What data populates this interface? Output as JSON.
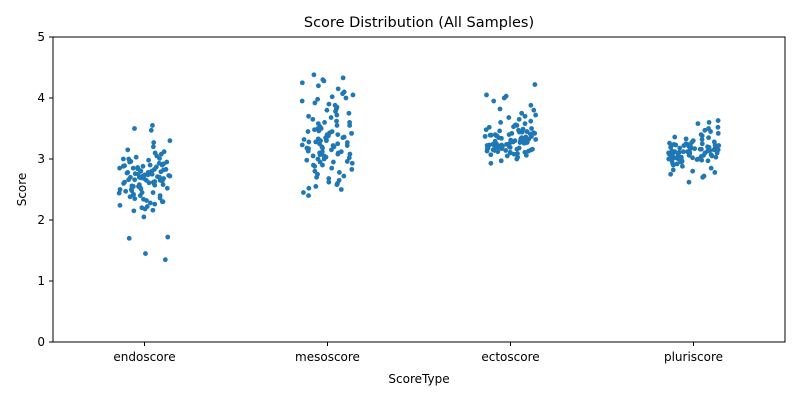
{
  "chart_data": {
    "type": "scatter",
    "subtype": "strip",
    "title": "Score Distribution (All Samples)",
    "xlabel": "ScoreType",
    "ylabel": "Score",
    "categories": [
      "endoscore",
      "mesoscore",
      "ectoscore",
      "pluriscore"
    ],
    "yticks": [
      0,
      1,
      2,
      3,
      4,
      5
    ],
    "ylim": [
      0,
      5
    ],
    "grid": false,
    "point_color": "#1f77b4",
    "series": [
      {
        "category": "endoscore",
        "summary": {
          "min": 1.35,
          "max": 3.55,
          "center": 2.7
        },
        "values": [
          3.55,
          3.5,
          3.47,
          3.3,
          3.27,
          3.2,
          3.15,
          3.12,
          3.1,
          3.08,
          3.05,
          3.03,
          3.01,
          3.0,
          2.98,
          2.96,
          2.95,
          2.93,
          2.92,
          2.9,
          2.89,
          2.88,
          2.87,
          2.86,
          2.85,
          2.84,
          2.83,
          2.82,
          2.81,
          2.8,
          2.79,
          2.78,
          2.77,
          2.76,
          2.75,
          2.74,
          2.73,
          2.72,
          2.71,
          2.7,
          2.69,
          2.68,
          2.67,
          2.66,
          2.65,
          2.64,
          2.63,
          2.62,
          2.61,
          2.6,
          2.59,
          2.58,
          2.57,
          2.56,
          2.55,
          2.54,
          2.53,
          2.52,
          2.51,
          2.5,
          2.48,
          2.47,
          2.45,
          2.44,
          2.42,
          2.41,
          2.4,
          2.38,
          2.36,
          2.34,
          2.32,
          2.3,
          2.28,
          2.26,
          2.24,
          2.22,
          2.2,
          2.18,
          2.16,
          2.15,
          2.05,
          1.72,
          1.7,
          1.45,
          1.35,
          2.9,
          2.85,
          2.8,
          2.75,
          2.7,
          2.65,
          2.6,
          2.55,
          2.7,
          2.72,
          2.68,
          2.66,
          2.74,
          2.62,
          2.58,
          2.78,
          2.83,
          2.88,
          2.95,
          3.0,
          2.5,
          2.45,
          2.4,
          2.35,
          2.3
        ]
      },
      {
        "category": "mesoscore",
        "summary": {
          "min": 2.4,
          "max": 4.38,
          "center": 3.2
        },
        "values": [
          4.38,
          4.33,
          4.3,
          4.28,
          4.25,
          4.2,
          4.15,
          4.1,
          4.07,
          4.05,
          4.02,
          4.0,
          3.98,
          3.95,
          3.92,
          3.9,
          3.88,
          3.85,
          3.82,
          3.8,
          3.78,
          3.75,
          3.72,
          3.7,
          3.68,
          3.65,
          3.62,
          3.6,
          3.58,
          3.55,
          3.53,
          3.5,
          3.48,
          3.46,
          3.45,
          3.43,
          3.42,
          3.4,
          3.38,
          3.36,
          3.35,
          3.33,
          3.32,
          3.3,
          3.28,
          3.27,
          3.25,
          3.23,
          3.22,
          3.2,
          3.18,
          3.17,
          3.15,
          3.13,
          3.12,
          3.1,
          3.08,
          3.07,
          3.05,
          3.03,
          3.02,
          3.0,
          2.98,
          2.96,
          2.95,
          2.93,
          2.9,
          2.88,
          2.85,
          2.83,
          2.8,
          2.78,
          2.75,
          2.72,
          2.7,
          2.68,
          2.65,
          2.62,
          2.6,
          2.58,
          2.55,
          2.52,
          2.5,
          2.45,
          2.4,
          3.4,
          3.35,
          3.3,
          3.25,
          3.2,
          3.15,
          3.1,
          3.05,
          3.0,
          3.45,
          3.5,
          3.55,
          3.6,
          2.95,
          2.9,
          3.22,
          3.28,
          3.32,
          3.18,
          3.12,
          3.08
        ]
      },
      {
        "category": "ectoscore",
        "summary": {
          "min": 2.93,
          "max": 4.22,
          "center": 3.3
        },
        "values": [
          4.22,
          4.05,
          4.03,
          4.0,
          3.95,
          3.88,
          3.82,
          3.8,
          3.75,
          3.72,
          3.7,
          3.68,
          3.65,
          3.62,
          3.6,
          3.58,
          3.56,
          3.55,
          3.53,
          3.52,
          3.5,
          3.49,
          3.48,
          3.47,
          3.46,
          3.45,
          3.44,
          3.43,
          3.42,
          3.41,
          3.4,
          3.39,
          3.38,
          3.37,
          3.36,
          3.35,
          3.34,
          3.33,
          3.32,
          3.31,
          3.3,
          3.29,
          3.28,
          3.27,
          3.26,
          3.25,
          3.24,
          3.23,
          3.22,
          3.21,
          3.2,
          3.19,
          3.18,
          3.17,
          3.16,
          3.15,
          3.14,
          3.13,
          3.12,
          3.11,
          3.1,
          3.09,
          3.08,
          3.07,
          3.06,
          3.05,
          3.03,
          3.0,
          2.97,
          2.93,
          3.3,
          3.28,
          3.26,
          3.24,
          3.22,
          3.32,
          3.34,
          3.36,
          3.38,
          3.2,
          3.18,
          3.16,
          3.14,
          3.4,
          3.42,
          3.44,
          3.25,
          3.27,
          3.29,
          3.31,
          3.33,
          3.35,
          3.21,
          3.19,
          3.17,
          3.15,
          3.13,
          3.11,
          3.23,
          3.37,
          3.39
        ]
      },
      {
        "category": "pluriscore",
        "summary": {
          "min": 2.62,
          "max": 3.63,
          "center": 3.1
        },
        "values": [
          3.63,
          3.6,
          3.58,
          3.52,
          3.5,
          3.47,
          3.45,
          3.42,
          3.4,
          3.38,
          3.36,
          3.35,
          3.33,
          3.32,
          3.3,
          3.28,
          3.27,
          3.26,
          3.25,
          3.24,
          3.23,
          3.22,
          3.21,
          3.2,
          3.19,
          3.18,
          3.17,
          3.16,
          3.15,
          3.14,
          3.13,
          3.12,
          3.11,
          3.1,
          3.09,
          3.08,
          3.07,
          3.06,
          3.05,
          3.04,
          3.03,
          3.02,
          3.01,
          3.0,
          2.99,
          2.98,
          2.97,
          2.96,
          2.95,
          2.93,
          2.92,
          2.9,
          2.88,
          2.85,
          2.82,
          2.8,
          2.78,
          2.75,
          2.72,
          2.7,
          2.62,
          3.1,
          3.12,
          3.08,
          3.06,
          3.14,
          3.16,
          3.04,
          3.02,
          3.18,
          3.2,
          3.0,
          2.98,
          3.22,
          3.24,
          3.11,
          3.09,
          3.13,
          3.07,
          3.15,
          3.05,
          3.17,
          3.03,
          3.19,
          3.01,
          3.21,
          2.99,
          3.23,
          2.97,
          3.25,
          3.1,
          3.12,
          3.08
        ]
      }
    ]
  }
}
